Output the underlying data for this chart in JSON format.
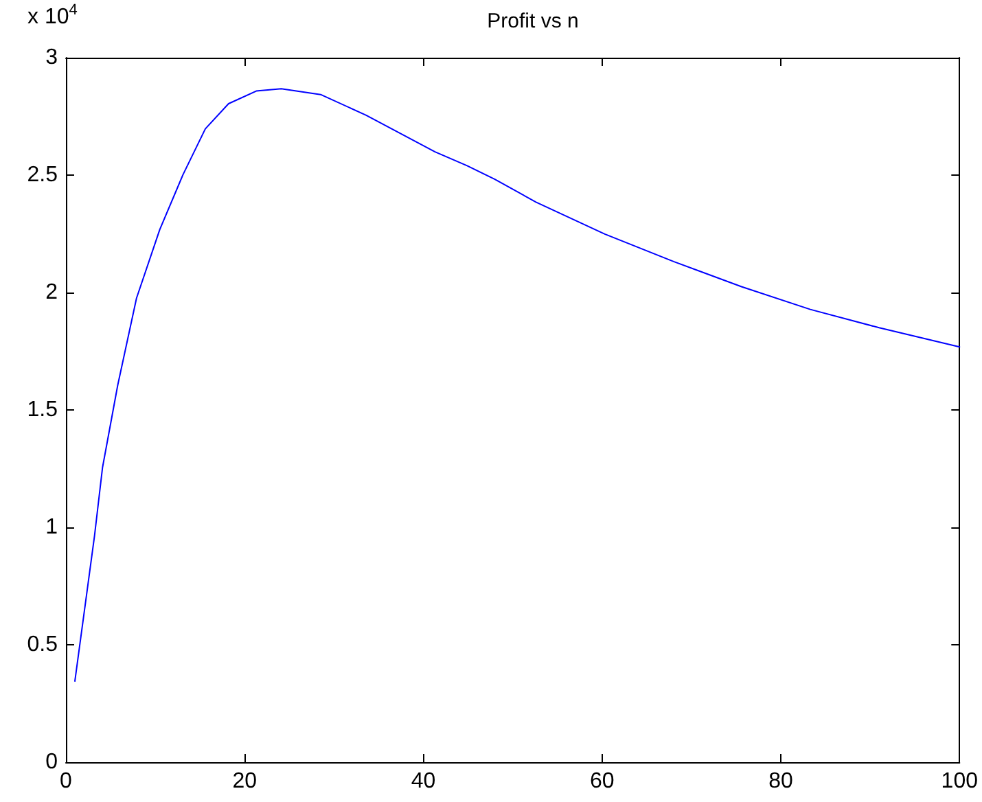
{
  "chart_data": {
    "type": "line",
    "title": "Profit vs n",
    "annotations": [
      "x 10$^{4}$"
    ],
    "x": [
      1,
      2.3,
      3.2,
      4.1,
      5.8,
      7.9,
      10.5,
      13.1,
      15.6,
      18.2,
      21.3,
      24.1,
      28.5,
      33.6,
      41.3,
      44.9,
      48,
      52.6,
      60.3,
      68,
      75.6,
      83.3,
      91,
      100
    ],
    "series": [
      {
        "color": "#0000ff",
        "values": [
          0.345,
          0.71,
          0.964,
          1.256,
          1.606,
          1.976,
          2.268,
          2.502,
          2.697,
          2.804,
          2.858,
          2.868,
          2.843,
          2.755,
          2.599,
          2.54,
          2.482,
          2.385,
          2.249,
          2.132,
          2.025,
          1.928,
          1.85,
          1.768
        ]
      }
    ],
    "xlim": [
      0,
      100
    ],
    "xticks": [
      0,
      20,
      40,
      60,
      80,
      100
    ],
    "ylim": [
      0,
      3
    ],
    "yticks": [
      0,
      0.5,
      1,
      1.5,
      2,
      2.5,
      3
    ],
    "grid": false,
    "marker": "none",
    "line_style": "solid"
  }
}
